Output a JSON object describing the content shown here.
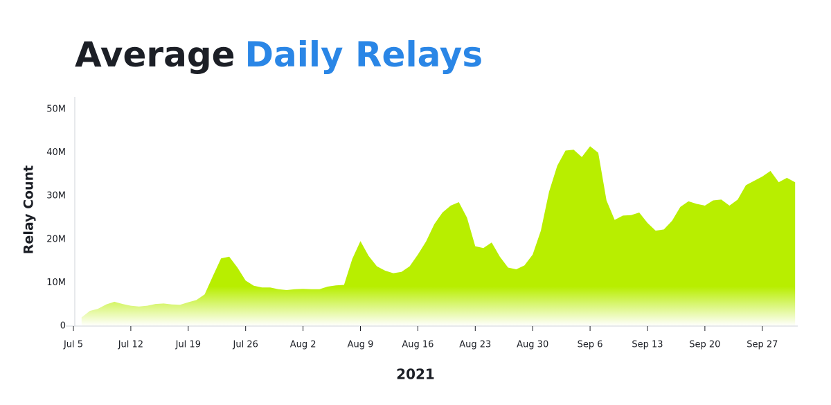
{
  "chart_data": {
    "type": "area",
    "title": "Average",
    "title_highlight": "Daily Relays",
    "x_label": "2021",
    "y_label": "Relay Count",
    "color": "#b8ee00",
    "x": [
      "2021-07-06",
      "2021-07-07",
      "2021-07-08",
      "2021-07-09",
      "2021-07-10",
      "2021-07-11",
      "2021-07-12",
      "2021-07-13",
      "2021-07-14",
      "2021-07-15",
      "2021-07-16",
      "2021-07-17",
      "2021-07-18",
      "2021-07-19",
      "2021-07-20",
      "2021-07-21",
      "2021-07-22",
      "2021-07-23",
      "2021-07-24",
      "2021-07-25",
      "2021-07-26",
      "2021-07-27",
      "2021-07-28",
      "2021-07-29",
      "2021-07-30",
      "2021-07-31",
      "2021-08-01",
      "2021-08-02",
      "2021-08-03",
      "2021-08-04",
      "2021-08-05",
      "2021-08-06",
      "2021-08-07",
      "2021-08-08",
      "2021-08-09",
      "2021-08-10",
      "2021-08-11",
      "2021-08-12",
      "2021-08-13",
      "2021-08-14",
      "2021-08-15",
      "2021-08-16",
      "2021-08-17",
      "2021-08-18",
      "2021-08-19",
      "2021-08-20",
      "2021-08-21",
      "2021-08-22",
      "2021-08-23",
      "2021-08-24",
      "2021-08-25",
      "2021-08-26",
      "2021-08-27",
      "2021-08-28",
      "2021-08-29",
      "2021-08-30",
      "2021-08-31",
      "2021-09-01",
      "2021-09-02",
      "2021-09-03",
      "2021-09-04",
      "2021-09-05",
      "2021-09-06",
      "2021-09-07",
      "2021-09-08",
      "2021-09-09",
      "2021-09-10",
      "2021-09-11",
      "2021-09-12",
      "2021-09-13",
      "2021-09-14",
      "2021-09-15",
      "2021-09-16",
      "2021-09-17",
      "2021-09-18",
      "2021-09-19",
      "2021-09-20",
      "2021-09-21",
      "2021-09-22",
      "2021-09-23",
      "2021-09-24",
      "2021-09-25",
      "2021-09-26",
      "2021-09-27",
      "2021-09-28",
      "2021-09-29",
      "2021-09-30",
      "2021-10-01"
    ],
    "values": [
      2000000,
      3500000,
      4000000,
      5000000,
      5600000,
      5100000,
      4700000,
      4500000,
      4700000,
      5100000,
      5200000,
      5000000,
      4900000,
      5500000,
      6000000,
      7300000,
      11500000,
      15600000,
      16000000,
      13500000,
      10500000,
      9300000,
      8900000,
      8900000,
      8500000,
      8300000,
      8500000,
      8600000,
      8500000,
      8500000,
      9100000,
      9400000,
      9500000,
      15500000,
      19600000,
      16200000,
      13800000,
      12800000,
      12200000,
      12500000,
      13800000,
      16500000,
      19500000,
      23500000,
      26200000,
      27800000,
      28600000,
      25000000,
      18400000,
      18000000,
      19300000,
      16000000,
      13500000,
      13100000,
      14000000,
      16500000,
      22000000,
      31000000,
      37000000,
      40500000,
      40700000,
      39000000,
      41500000,
      40000000,
      29000000,
      24500000,
      25500000,
      25600000,
      26200000,
      23800000,
      22000000,
      22300000,
      24300000,
      27500000,
      28800000,
      28200000,
      27800000,
      29000000,
      29200000,
      27800000,
      29200000,
      32500000,
      33500000,
      34500000,
      35800000,
      33200000,
      34200000,
      33200000
    ],
    "xlim": [
      "2021-07-05",
      "2021-10-02"
    ],
    "xticks": [
      {
        "value": "2021-07-05",
        "label": "Jul 5"
      },
      {
        "value": "2021-07-12",
        "label": "Jul 12"
      },
      {
        "value": "2021-07-19",
        "label": "Jul 19"
      },
      {
        "value": "2021-07-26",
        "label": "Jul 26"
      },
      {
        "value": "2021-08-02",
        "label": "Aug 2"
      },
      {
        "value": "2021-08-09",
        "label": "Aug 9"
      },
      {
        "value": "2021-08-16",
        "label": "Aug 16"
      },
      {
        "value": "2021-08-23",
        "label": "Aug 23"
      },
      {
        "value": "2021-08-30",
        "label": "Aug 30"
      },
      {
        "value": "2021-09-06",
        "label": "Sep 6"
      },
      {
        "value": "2021-09-13",
        "label": "Sep 13"
      },
      {
        "value": "2021-09-20",
        "label": "Sep 20"
      },
      {
        "value": "2021-09-27",
        "label": "Sep 27"
      }
    ],
    "ylim": [
      0,
      50000000
    ],
    "yticks": [
      0,
      {
        "value": 10000000,
        "label": "10M"
      },
      {
        "value": 20000000,
        "label": "20M"
      },
      {
        "value": 30000000,
        "label": "30M"
      },
      {
        "value": 40000000,
        "label": "40M"
      },
      {
        "value": 50000000,
        "label": "50M"
      }
    ]
  }
}
